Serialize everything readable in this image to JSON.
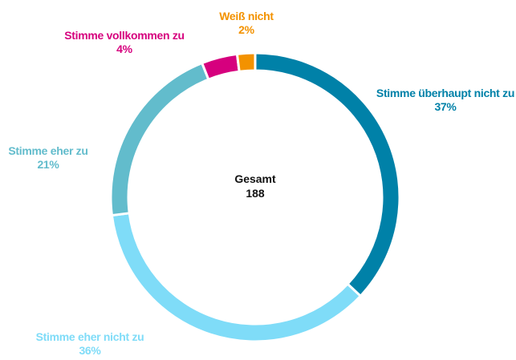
{
  "chart_data": {
    "type": "donut",
    "categories": [
      "Stimme überhaupt nicht zu",
      "Stimme eher nicht zu",
      "Stimme eher zu",
      "Stimme vollkommen zu",
      "Weiß nicht"
    ],
    "values": [
      37,
      36,
      21,
      4,
      2
    ],
    "value_labels": [
      "37%",
      "36%",
      "21%",
      "4%",
      "2%"
    ],
    "colors": [
      "#0081a8",
      "#7fdcf8",
      "#62bccc",
      "#d6007e",
      "#f39200"
    ],
    "center_label": "Gesamt",
    "center_value": 188
  }
}
